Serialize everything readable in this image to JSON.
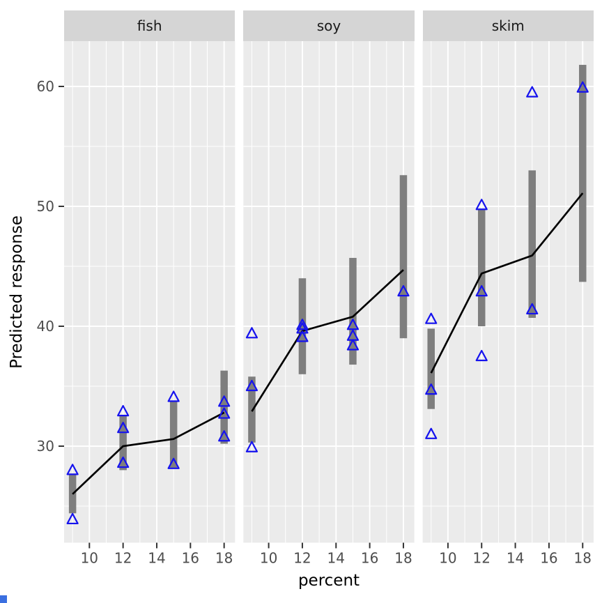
{
  "chart_data": {
    "type": "scatter",
    "subtype": "faceted ggplot-style plot: grey confidence-interval bars, black prediction line, open blue triangle data points",
    "title": "",
    "xlabel": "percent",
    "ylabel": "Predicted response",
    "x_ticks": [
      10,
      12,
      14,
      16,
      18
    ],
    "y_ticks": [
      30,
      40,
      50,
      60
    ],
    "x_minor_ticks": [
      9,
      11,
      13,
      15,
      17
    ],
    "y_minor_ticks": [
      25,
      35,
      45,
      55
    ],
    "x_range": [
      8.55,
      18.65
    ],
    "y_range": [
      21.9,
      63.8
    ],
    "grid": "on",
    "legend": "none",
    "facets": [
      {
        "label": "fish",
        "intervals": [
          {
            "x": 9,
            "lo": 24.4,
            "hi": 27.7
          },
          {
            "x": 12,
            "lo": 28.0,
            "hi": 32.6
          },
          {
            "x": 15,
            "lo": 28.2,
            "hi": 33.7
          },
          {
            "x": 18,
            "lo": 30.2,
            "hi": 36.3
          }
        ],
        "line": [
          {
            "x": 9,
            "y": 26.0
          },
          {
            "x": 12,
            "y": 30.0
          },
          {
            "x": 15,
            "y": 30.6
          },
          {
            "x": 18,
            "y": 32.8
          }
        ],
        "points": [
          {
            "x": 9,
            "y": 28.0
          },
          {
            "x": 9,
            "y": 23.9
          },
          {
            "x": 12,
            "y": 32.9
          },
          {
            "x": 12,
            "y": 31.5
          },
          {
            "x": 12,
            "y": 28.6
          },
          {
            "x": 15,
            "y": 34.1
          },
          {
            "x": 15,
            "y": 28.5
          },
          {
            "x": 18,
            "y": 33.7
          },
          {
            "x": 18,
            "y": 32.7
          },
          {
            "x": 18,
            "y": 30.8
          }
        ]
      },
      {
        "label": "soy",
        "intervals": [
          {
            "x": 9,
            "lo": 30.3,
            "hi": 35.8
          },
          {
            "x": 12,
            "lo": 36.0,
            "hi": 44.0
          },
          {
            "x": 15,
            "lo": 36.8,
            "hi": 45.7
          },
          {
            "x": 18,
            "lo": 39.0,
            "hi": 52.6
          }
        ],
        "line": [
          {
            "x": 9,
            "y": 32.9
          },
          {
            "x": 12,
            "y": 39.6
          },
          {
            "x": 15,
            "y": 40.8
          },
          {
            "x": 18,
            "y": 44.7
          }
        ],
        "points": [
          {
            "x": 9,
            "y": 39.4
          },
          {
            "x": 9,
            "y": 35.0
          },
          {
            "x": 9,
            "y": 29.9
          },
          {
            "x": 12,
            "y": 40.1
          },
          {
            "x": 12,
            "y": 39.8
          },
          {
            "x": 12,
            "y": 39.1
          },
          {
            "x": 15,
            "y": 40.1
          },
          {
            "x": 15,
            "y": 39.2
          },
          {
            "x": 15,
            "y": 38.4
          },
          {
            "x": 18,
            "y": 42.9
          }
        ]
      },
      {
        "label": "skim",
        "intervals": [
          {
            "x": 9,
            "lo": 33.1,
            "hi": 39.8
          },
          {
            "x": 12,
            "lo": 40.0,
            "hi": 49.8
          },
          {
            "x": 15,
            "lo": 40.7,
            "hi": 53.0
          },
          {
            "x": 18,
            "lo": 43.7,
            "hi": 61.8
          }
        ],
        "line": [
          {
            "x": 9,
            "y": 36.1
          },
          {
            "x": 12,
            "y": 44.4
          },
          {
            "x": 15,
            "y": 45.9
          },
          {
            "x": 18,
            "y": 51.1
          }
        ],
        "points": [
          {
            "x": 9,
            "y": 40.6
          },
          {
            "x": 9,
            "y": 34.7
          },
          {
            "x": 9,
            "y": 31.0
          },
          {
            "x": 12,
            "y": 50.1
          },
          {
            "x": 12,
            "y": 42.9
          },
          {
            "x": 12,
            "y": 37.5
          },
          {
            "x": 15,
            "y": 59.5
          },
          {
            "x": 15,
            "y": 41.4
          },
          {
            "x": 18,
            "y": 59.9
          }
        ]
      }
    ],
    "colors": {
      "panel_bg": "#ebebeb",
      "strip_bg": "#d5d5d5",
      "grid": "#ffffff",
      "bar": "#7e7e7e",
      "line": "#000000",
      "point": "#1512ee",
      "axis_text": "#4d4d4d",
      "axis_tick": "#333333",
      "axis_title": "#000000"
    }
  }
}
